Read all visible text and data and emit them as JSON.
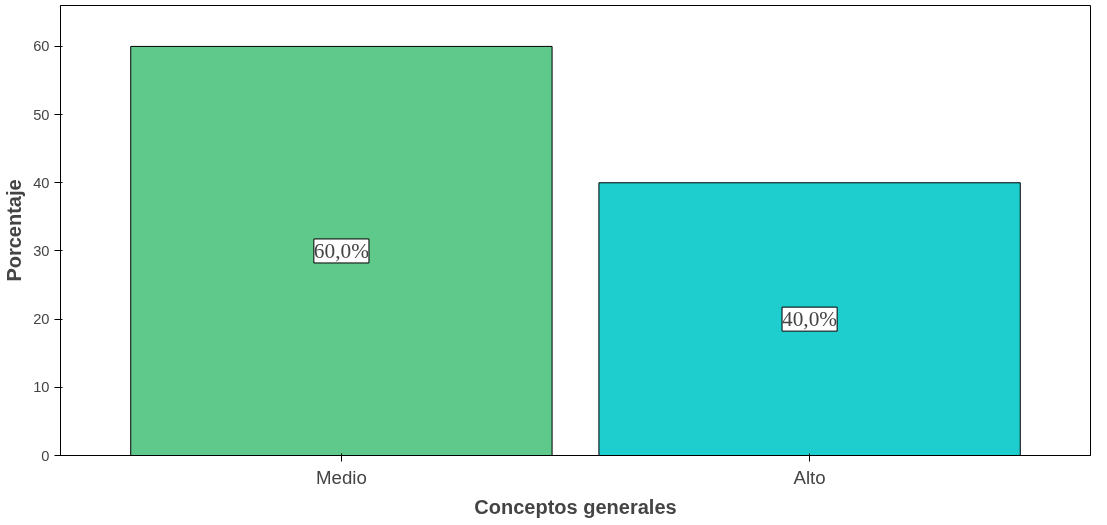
{
  "chart_data": {
    "type": "bar",
    "xlabel": "Conceptos generales",
    "ylabel": "Porcentaje",
    "categories": [
      "Medio",
      "Alto"
    ],
    "values": [
      60,
      40
    ],
    "colors": [
      "#5ec98b",
      "#1ecdcd"
    ],
    "value_labels": [
      "60,0%",
      "40,0%"
    ],
    "ylim": [
      0,
      66
    ],
    "yticks": [
      0,
      10,
      20,
      30,
      40,
      50,
      60
    ],
    "grid": false
  }
}
